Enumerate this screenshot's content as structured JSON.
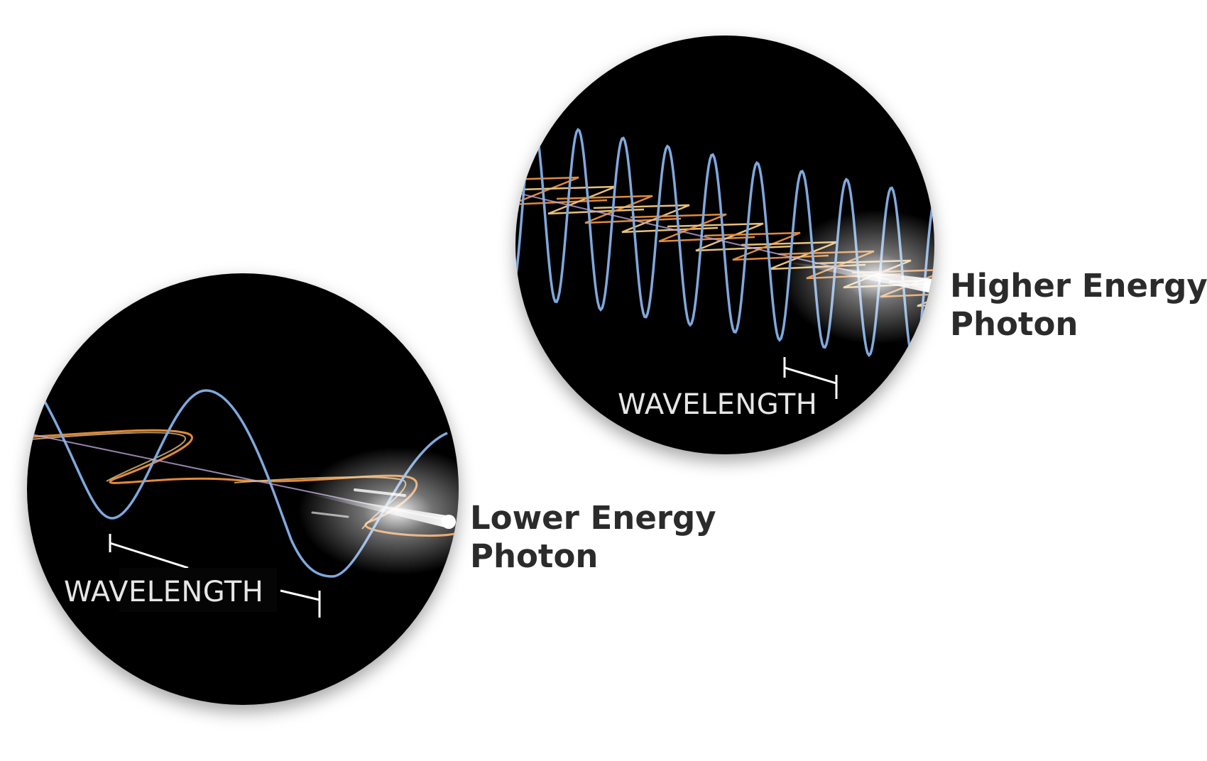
{
  "panels": [
    {
      "id": "lower",
      "label_line1": "Lower Energy",
      "label_line2": "Photon",
      "wavelength_label": "WAVELENGTH",
      "relative_wavelength": "long"
    },
    {
      "id": "higher",
      "label_line1": "Higher Energy",
      "label_line2": "Photon",
      "wavelength_label": "WAVELENGTH",
      "relative_wavelength": "short"
    }
  ],
  "colors": {
    "background": "#ffffff",
    "circle_fill": "#050505",
    "blue_wave": "#7fa9de",
    "orange_wave": "#e08a3c",
    "yellow_wave": "#e8c07a",
    "label_text": "#2b2b2b",
    "wavelength_text": "#e6e6e6",
    "photon_beam": "#ffffff"
  }
}
